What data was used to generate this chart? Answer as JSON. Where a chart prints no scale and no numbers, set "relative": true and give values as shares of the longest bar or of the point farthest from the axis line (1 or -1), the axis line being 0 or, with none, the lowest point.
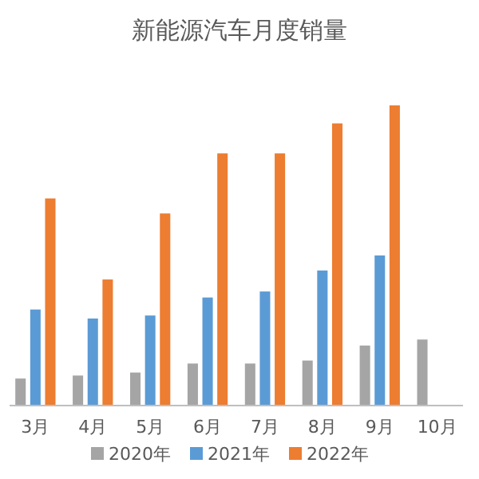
{
  "chart_data": {
    "type": "bar",
    "title": "新能源汽车月度销量",
    "relative": true,
    "legend": "bottom",
    "grid": false,
    "categories": [
      "3月",
      "4月",
      "5月",
      "6月",
      "7月",
      "8月",
      "9月",
      "10月"
    ],
    "series": [
      {
        "name": "2020年",
        "color": "#a5a5a5",
        "values": [
          0.09,
          0.1,
          0.11,
          0.14,
          0.14,
          0.15,
          0.2,
          0.22
        ]
      },
      {
        "name": "2021年",
        "color": "#5b9bd5",
        "values": [
          0.32,
          0.29,
          0.3,
          0.36,
          0.38,
          0.45,
          0.5,
          null
        ]
      },
      {
        "name": "2022年",
        "color": "#ed7d31",
        "values": [
          0.69,
          0.42,
          0.64,
          0.84,
          0.84,
          0.94,
          1,
          null
        ]
      }
    ]
  }
}
